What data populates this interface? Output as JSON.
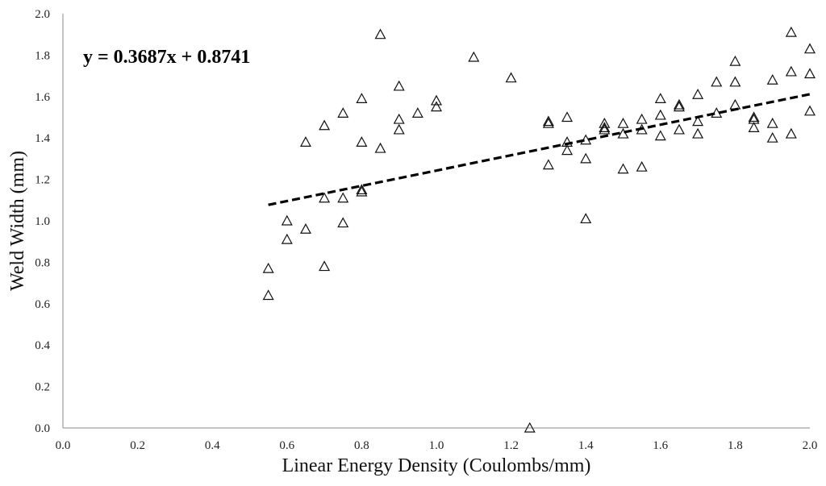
{
  "chart_data": {
    "type": "scatter",
    "title": "",
    "xlabel": "Linear Energy Density (Coulombs/mm)",
    "ylabel": "Weld Width (mm)",
    "xlim": [
      0.0,
      2.0
    ],
    "ylim": [
      0.0,
      2.0
    ],
    "xticks": [
      "0.0",
      "0.2",
      "0.4",
      "0.6",
      "0.8",
      "1.0",
      "1.2",
      "1.4",
      "1.6",
      "1.8",
      "2.0"
    ],
    "yticks": [
      "0.0",
      "0.2",
      "0.4",
      "0.6",
      "0.8",
      "1.0",
      "1.2",
      "1.4",
      "1.6",
      "1.8",
      "2.0"
    ],
    "grid": false,
    "marker": "open-triangle",
    "trendline": {
      "equation": "y = 0.3687x + 0.8741",
      "slope": 0.3687,
      "intercept": 0.8741,
      "x_range": [
        0.55,
        2.0
      ],
      "style": "dashed"
    },
    "series": [
      {
        "name": "Weld Width",
        "points": [
          [
            0.55,
            0.77
          ],
          [
            0.55,
            0.64
          ],
          [
            0.6,
            1.0
          ],
          [
            0.6,
            0.91
          ],
          [
            0.65,
            1.38
          ],
          [
            0.65,
            0.96
          ],
          [
            0.7,
            1.46
          ],
          [
            0.7,
            1.11
          ],
          [
            0.7,
            0.78
          ],
          [
            0.75,
            1.52
          ],
          [
            0.75,
            1.11
          ],
          [
            0.75,
            0.99
          ],
          [
            0.8,
            1.59
          ],
          [
            0.8,
            1.38
          ],
          [
            0.8,
            1.15
          ],
          [
            0.8,
            1.14
          ],
          [
            0.85,
            1.9
          ],
          [
            0.85,
            1.35
          ],
          [
            0.9,
            1.65
          ],
          [
            0.9,
            1.49
          ],
          [
            0.9,
            1.44
          ],
          [
            0.95,
            1.52
          ],
          [
            1.0,
            1.58
          ],
          [
            1.0,
            1.55
          ],
          [
            1.1,
            1.79
          ],
          [
            1.2,
            1.69
          ],
          [
            1.25,
            0.0
          ],
          [
            1.3,
            1.47
          ],
          [
            1.3,
            1.48
          ],
          [
            1.3,
            1.27
          ],
          [
            1.35,
            1.5
          ],
          [
            1.35,
            1.38
          ],
          [
            1.35,
            1.34
          ],
          [
            1.4,
            1.39
          ],
          [
            1.4,
            1.3
          ],
          [
            1.4,
            1.01
          ],
          [
            1.45,
            1.47
          ],
          [
            1.45,
            1.45
          ],
          [
            1.45,
            1.44
          ],
          [
            1.5,
            1.47
          ],
          [
            1.5,
            1.42
          ],
          [
            1.5,
            1.25
          ],
          [
            1.55,
            1.49
          ],
          [
            1.55,
            1.44
          ],
          [
            1.55,
            1.26
          ],
          [
            1.6,
            1.59
          ],
          [
            1.6,
            1.51
          ],
          [
            1.6,
            1.41
          ],
          [
            1.65,
            1.56
          ],
          [
            1.65,
            1.55
          ],
          [
            1.65,
            1.44
          ],
          [
            1.7,
            1.61
          ],
          [
            1.7,
            1.48
          ],
          [
            1.7,
            1.42
          ],
          [
            1.75,
            1.67
          ],
          [
            1.75,
            1.52
          ],
          [
            1.8,
            1.77
          ],
          [
            1.8,
            1.67
          ],
          [
            1.8,
            1.56
          ],
          [
            1.85,
            1.5
          ],
          [
            1.85,
            1.49
          ],
          [
            1.85,
            1.45
          ],
          [
            1.9,
            1.68
          ],
          [
            1.9,
            1.47
          ],
          [
            1.9,
            1.4
          ],
          [
            1.95,
            1.91
          ],
          [
            1.95,
            1.72
          ],
          [
            1.95,
            1.42
          ],
          [
            2.0,
            1.83
          ],
          [
            2.0,
            1.71
          ],
          [
            2.0,
            1.53
          ]
        ]
      }
    ]
  }
}
